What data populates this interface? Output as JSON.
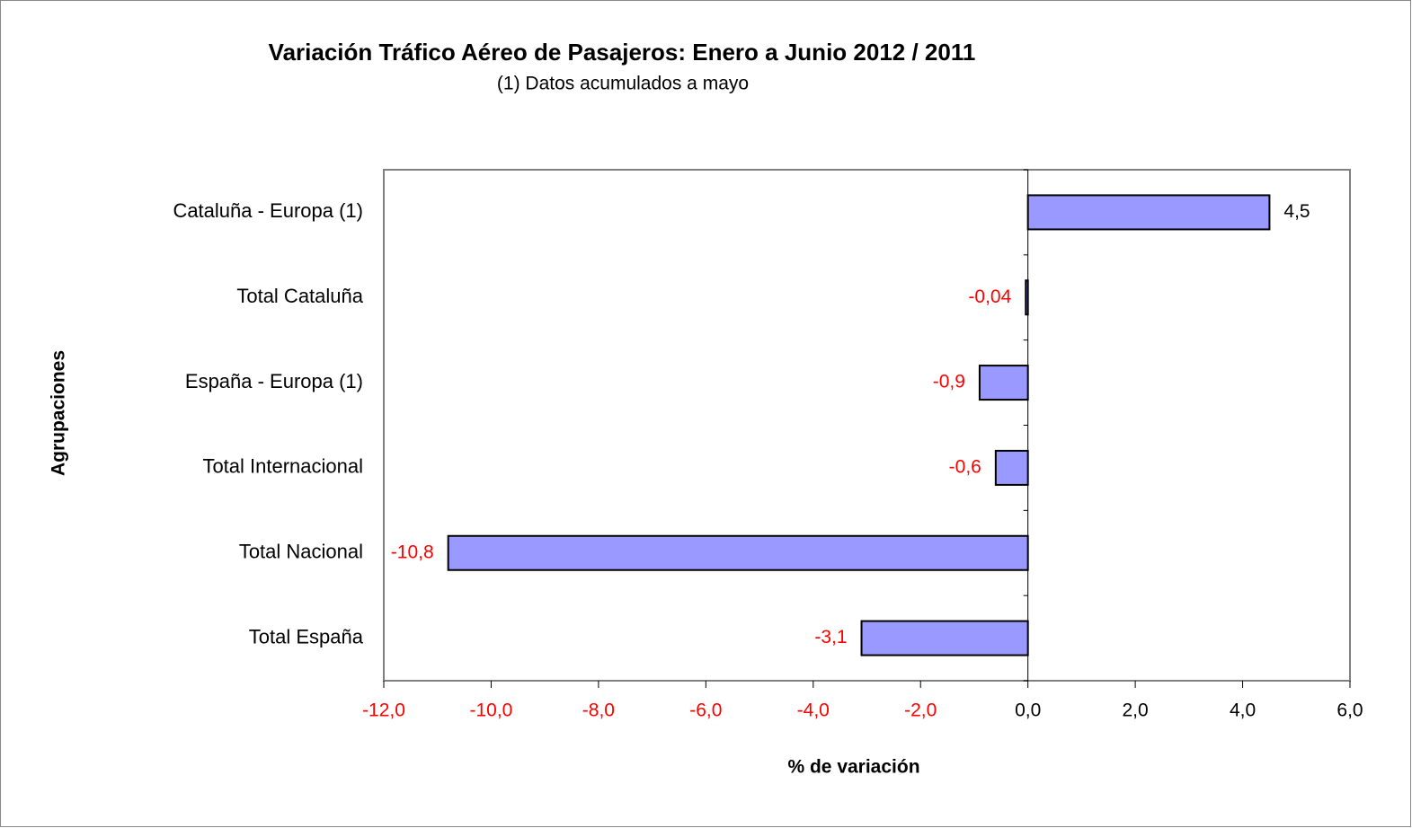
{
  "chart_data": {
    "type": "barh",
    "title": "Variación Tráfico Aéreo de Pasajeros:  Enero a Junio 2012 / 2011",
    "subtitle": "(1)  Datos acumulados a mayo",
    "x_label": "% de variación",
    "y_label": "Agrupaciones",
    "categories": [
      "Cataluña - Europa (1)",
      "Total Cataluña",
      "España - Europa (1)",
      "Total Internacional",
      "Total Nacional",
      "Total España"
    ],
    "values": [
      4.5,
      -0.04,
      -0.9,
      -0.6,
      -10.8,
      -3.1
    ],
    "value_labels": [
      "4,5",
      "-0,04",
      "-0,9",
      "-0,6",
      "-10,8",
      "-3,1"
    ],
    "color": "#9999ff",
    "negative_label_color": "#ff0000",
    "xlim": [
      -12,
      6
    ],
    "xticks": [
      {
        "value": -12,
        "label": "-12,0"
      },
      {
        "value": -10,
        "label": "-10,0"
      },
      {
        "value": -8,
        "label": "-8,0"
      },
      {
        "value": -6,
        "label": "-6,0"
      },
      {
        "value": -4,
        "label": "-4,0"
      },
      {
        "value": -2,
        "label": "-2,0"
      },
      {
        "value": 0,
        "label": "0,0"
      },
      {
        "value": 2,
        "label": "2,0"
      },
      {
        "value": 4,
        "label": "4,0"
      },
      {
        "value": 6,
        "label": "6,0"
      }
    ],
    "grid": false
  }
}
